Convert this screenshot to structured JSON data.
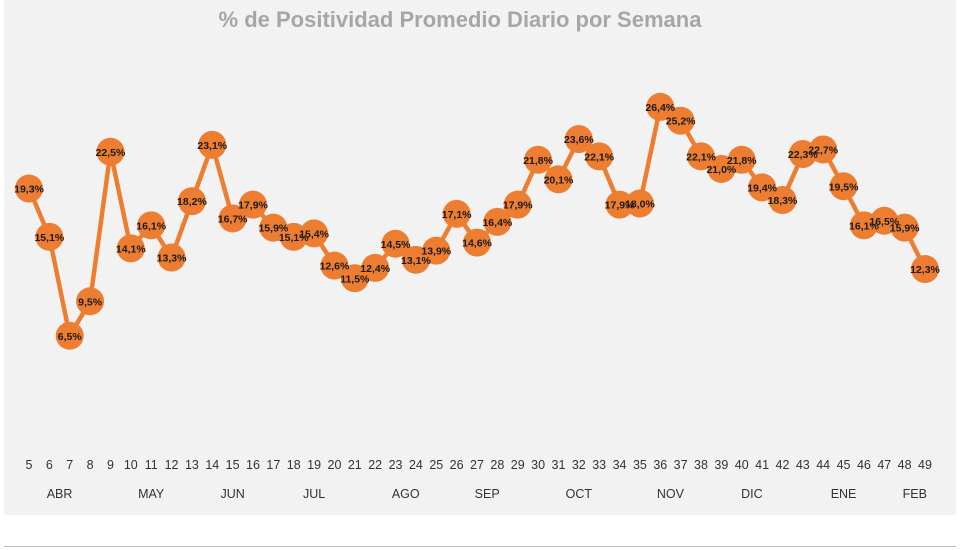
{
  "colors": {
    "series": "#ED7D31",
    "panel": "#F2F2F2",
    "title": "#A6A6A6"
  },
  "chart_data": {
    "type": "line",
    "title": "% de Positividad Promedio Diario por Semana",
    "xlabel": "",
    "ylabel": "",
    "ylim": [
      0,
      30
    ],
    "grid": false,
    "legend": "none",
    "x": [
      5,
      6,
      7,
      8,
      9,
      10,
      11,
      12,
      13,
      14,
      15,
      16,
      17,
      18,
      19,
      20,
      21,
      22,
      23,
      24,
      25,
      26,
      27,
      28,
      29,
      30,
      31,
      32,
      33,
      34,
      35,
      36,
      37,
      38,
      39,
      40,
      41,
      42,
      43,
      44,
      45,
      46,
      47,
      48,
      49
    ],
    "values": [
      19.3,
      15.1,
      6.5,
      9.5,
      22.5,
      14.1,
      16.1,
      13.3,
      18.2,
      23.1,
      16.7,
      17.9,
      15.9,
      15.1,
      15.4,
      12.6,
      11.5,
      12.4,
      14.5,
      13.1,
      13.9,
      17.1,
      14.6,
      16.4,
      17.9,
      21.8,
      20.1,
      23.6,
      22.1,
      17.9,
      18.0,
      26.4,
      25.2,
      22.1,
      21.0,
      21.8,
      19.4,
      18.3,
      22.3,
      22.7,
      19.5,
      16.1,
      16.5,
      15.9,
      12.3
    ],
    "labels": [
      "19,3%",
      "15,1%",
      "6,5%",
      "9,5%",
      "22,5%",
      "14,1%",
      "16,1%",
      "13,3%",
      "18,2%",
      "23,1%",
      "16,7%",
      "17,9%",
      "15,9%",
      "15,1%",
      "15,4%",
      "12,6%",
      "11,5%",
      "12,4%",
      "14,5%",
      "13,1%",
      "13,9%",
      "17,1%",
      "14,6%",
      "16,4%",
      "17,9%",
      "21,8%",
      "20,1%",
      "23,6%",
      "22,1%",
      "17,9%",
      "18,0%",
      "26,4%",
      "25,2%",
      "22,1%",
      "21,0%",
      "21,8%",
      "19,4%",
      "18,3%",
      "22,3%",
      "22,7%",
      "19,5%",
      "16,1%",
      "16,5%",
      "15,9%",
      "12,3%"
    ],
    "months": [
      {
        "label": "ABR",
        "from": 5,
        "to": 8
      },
      {
        "label": "MAY",
        "from": 9,
        "to": 13
      },
      {
        "label": "JUN",
        "from": 14,
        "to": 16
      },
      {
        "label": "JUL",
        "from": 17,
        "to": 21
      },
      {
        "label": "AGO",
        "from": 22,
        "to": 25
      },
      {
        "label": "SEP",
        "from": 26,
        "to": 29
      },
      {
        "label": "OCT",
        "from": 30,
        "to": 34
      },
      {
        "label": "NOV",
        "from": 35,
        "to": 38
      },
      {
        "label": "DIC",
        "from": 39,
        "to": 42
      },
      {
        "label": "ENE",
        "from": 43,
        "to": 47
      },
      {
        "label": "FEB",
        "from": 48,
        "to": 49
      }
    ]
  }
}
